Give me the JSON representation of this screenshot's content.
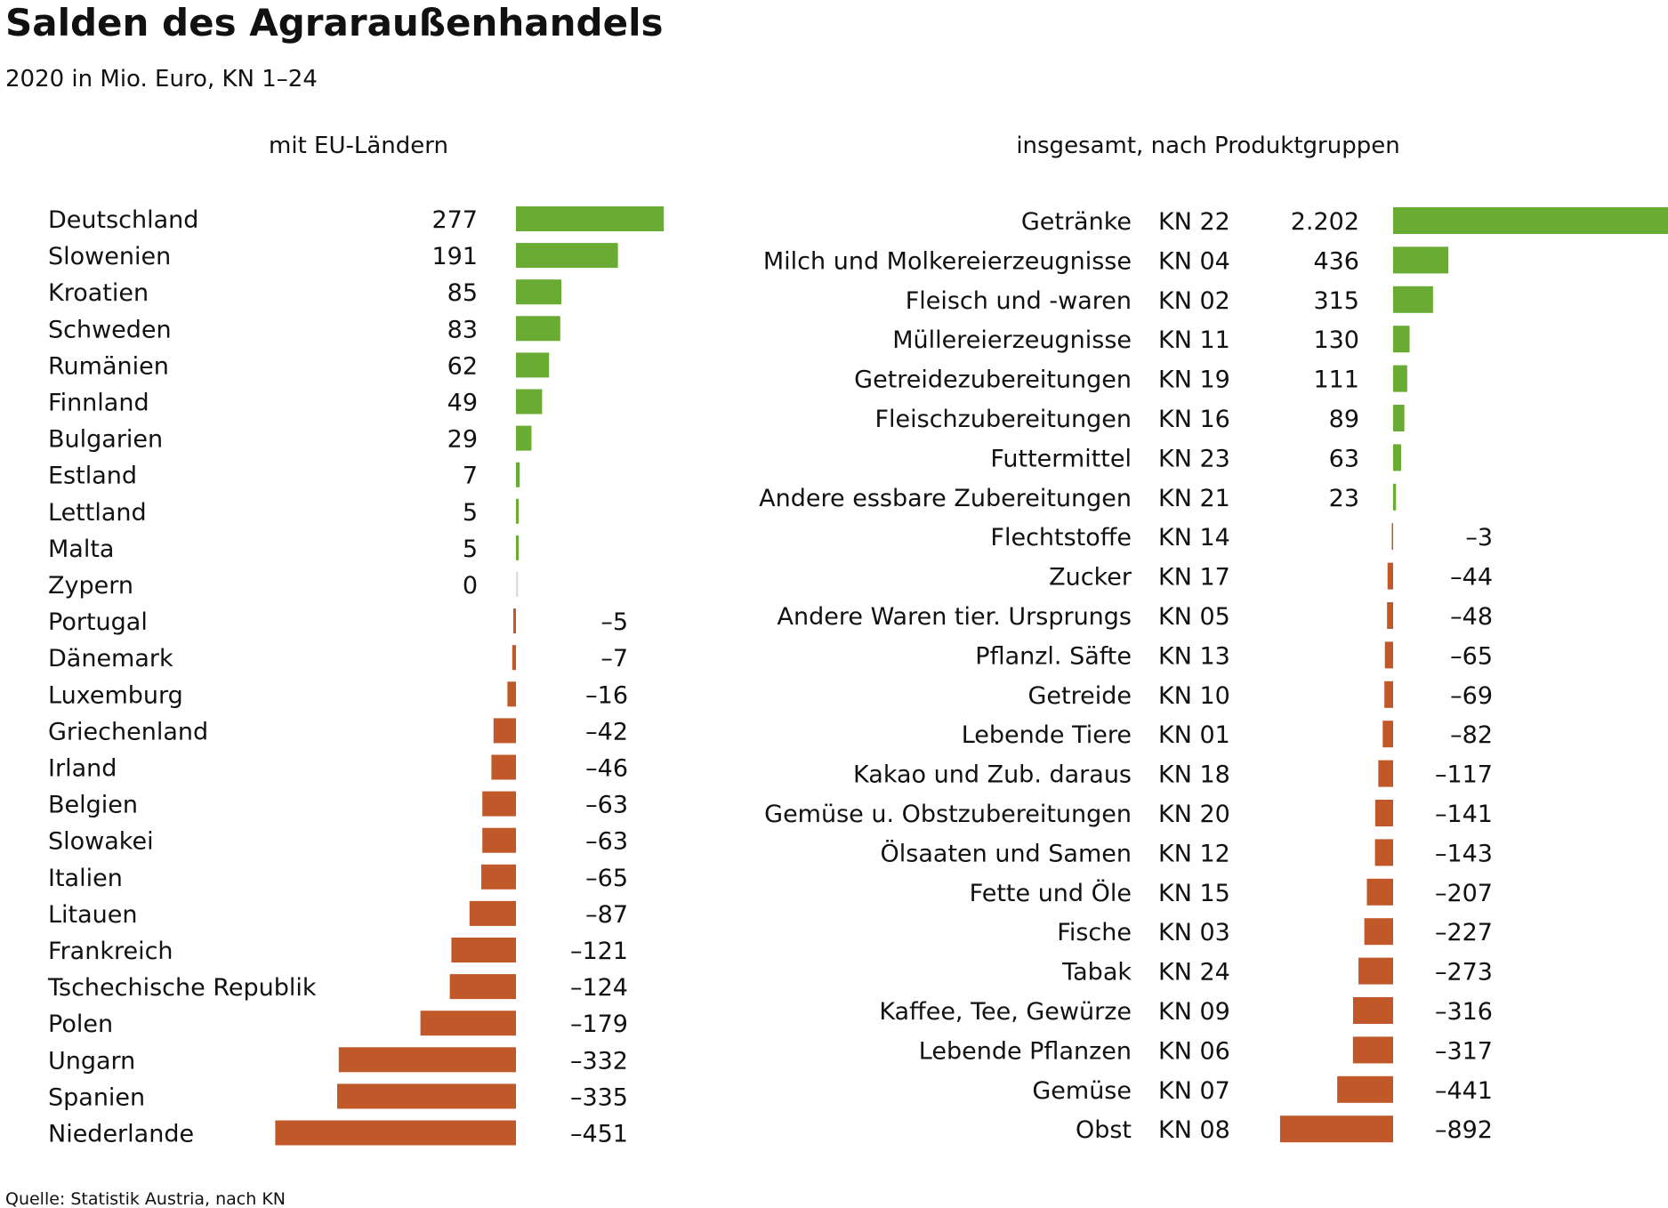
{
  "chart_data": [
    {
      "type": "bar",
      "orientation": "horizontal",
      "title": "Salden des Agraraußenhandels",
      "subtitle": "2020 in Mio. Euro, KN 1–24",
      "panel_title": "mit EU-Ländern",
      "categories": [
        "Deutschland",
        "Slowenien",
        "Kroatien",
        "Schweden",
        "Rumänien",
        "Finnland",
        "Bulgarien",
        "Estland",
        "Lettland",
        "Malta",
        "Zypern",
        "Portugal",
        "Dänemark",
        "Luxemburg",
        "Griechenland",
        "Irland",
        "Belgien",
        "Slowakei",
        "Italien",
        "Litauen",
        "Frankreich",
        "Tschechische Republik",
        "Polen",
        "Ungarn",
        "Spanien",
        "Niederlande"
      ],
      "values": [
        277,
        191,
        85,
        83,
        62,
        49,
        29,
        7,
        5,
        5,
        0,
        -5,
        -7,
        -16,
        -42,
        -46,
        -63,
        -63,
        -65,
        -87,
        -121,
        -124,
        -179,
        -332,
        -335,
        -451
      ],
      "value_labels": [
        "277",
        "191",
        "85",
        "83",
        "62",
        "49",
        "29",
        "7",
        "5",
        "5",
        "0",
        "–5",
        "–7",
        "–16",
        "–42",
        "–46",
        "–63",
        "–63",
        "–65",
        "–87",
        "–121",
        "–124",
        "–179",
        "–332",
        "–335",
        "–451"
      ]
    },
    {
      "type": "bar",
      "orientation": "horizontal",
      "panel_title": "insgesamt, nach Produktgruppen",
      "categories": [
        "Getränke",
        "Milch und Molkereierzeugnisse",
        "Fleisch und -waren",
        "Müllereierzeugnisse",
        "Getreidezubereitungen",
        "Fleischzubereitungen",
        "Futtermittel",
        "Andere essbare Zubereitungen",
        "Flechtstoffe",
        "Zucker",
        "Andere Waren tier. Ursprungs",
        "Pflanzl. Säfte",
        "Getreide",
        "Lebende Tiere",
        "Kakao und Zub. daraus",
        "Gemüse u. Obstzubereitungen",
        "Ölsaaten und Samen",
        "Fette und Öle",
        "Fische",
        "Tabak",
        "Kaffee, Tee, Gewürze",
        "Lebende Pflanzen",
        "Gemüse",
        "Obst"
      ],
      "codes": [
        "KN 22",
        "KN 04",
        "KN 02",
        "KN 11",
        "KN 19",
        "KN 16",
        "KN 23",
        "KN 21",
        "KN 14",
        "KN 17",
        "KN 05",
        "KN 13",
        "KN 10",
        "KN 01",
        "KN 18",
        "KN 20",
        "KN 12",
        "KN 15",
        "KN 03",
        "KN 24",
        "KN 09",
        "KN 06",
        "KN 07",
        "KN 08"
      ],
      "values": [
        2202,
        436,
        315,
        130,
        111,
        89,
        63,
        23,
        -3,
        -44,
        -48,
        -65,
        -69,
        -82,
        -117,
        -141,
        -143,
        -207,
        -227,
        -273,
        -316,
        -317,
        -441,
        -892
      ],
      "value_labels": [
        "2.202",
        "436",
        "315",
        "130",
        "111",
        "89",
        "63",
        "23",
        "–3",
        "–44",
        "–48",
        "–65",
        "–69",
        "–82",
        "–117",
        "–141",
        "–143",
        "–207",
        "–227",
        "–273",
        "–316",
        "–317",
        "–441",
        "–892"
      ]
    }
  ],
  "source": "Quelle: Statistik Austria, nach KN",
  "colors": {
    "positive": "#6aac33",
    "negative": "#c0582a"
  }
}
